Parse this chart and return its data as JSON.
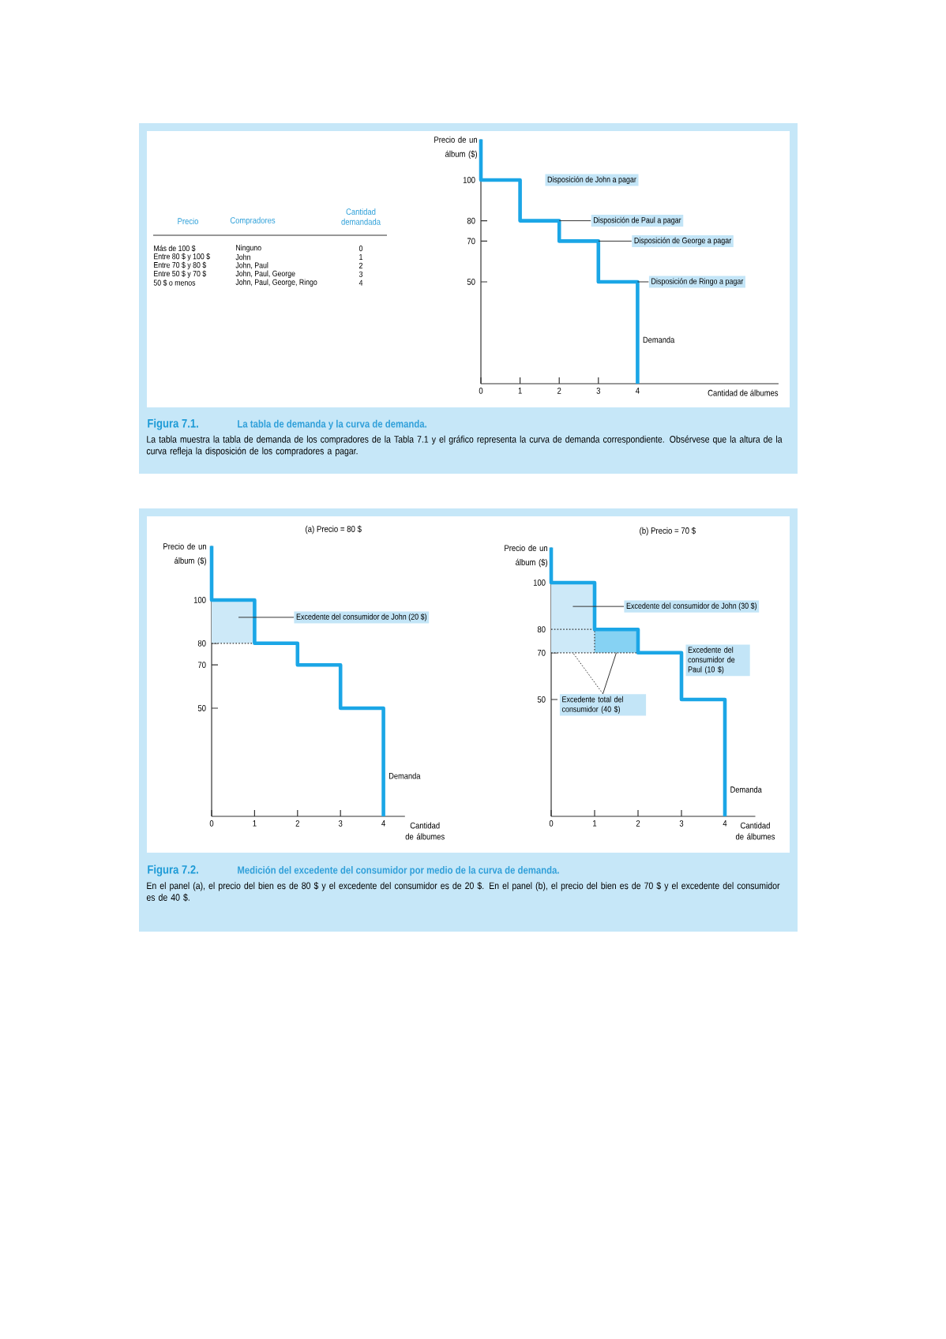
{
  "chart_data": [
    {
      "type": "other",
      "ylabel": "Precio",
      "y2label": "Compradores",
      "categories": [
        "Más de 100 $",
        "Entre 80 $ y 100 $",
        "Entre 70 $ y 80 $",
        "Entre 50 $ y 70 $",
        "50 $ o menos"
      ],
      "y2_categories": [
        "Ninguno",
        "John",
        "John, Paul",
        "John, Paul, George",
        "John, Paul, George, Ringo"
      ],
      "series": [
        {
          "name": "Cantidad demandada",
          "values": [
            0,
            1,
            2,
            3,
            4
          ]
        }
      ],
      "data_labels": true
    },
    {
      "type": "step",
      "ylabel": "Precio de un álbum ($)",
      "xlabel": "Cantidad de álbumes",
      "xlim": [
        0,
        7.6
      ],
      "ylim": [
        0,
        120
      ],
      "xticks": [
        0,
        1,
        2,
        3,
        4
      ],
      "yticks": [
        50,
        70,
        80,
        100
      ],
      "series": [
        {
          "name": "Demanda",
          "color": "#1ba6e6",
          "x": [
            0,
            0,
            1,
            2,
            3,
            4
          ],
          "values": [
            120,
            100,
            80,
            70,
            50,
            0
          ]
        }
      ],
      "annotations": [
        "Disposición de John a pagar",
        {
          "text": "Disposición de Paul a pagar",
          "x": 2,
          "y": 80
        },
        {
          "text": "Disposición de George a pagar",
          "x": 3,
          "y": 70
        },
        {
          "text": "Disposición de Ringo a pagar",
          "x": 4,
          "y": 50
        }
      ]
    },
    {
      "type": "other",
      "title": "Figura 7.1.",
      "subtitle": "La tabla de demanda y la curva de demanda.",
      "annotations": [
        "La tabla muestra la tabla de demanda de los compradores de la Tabla 7.1 y el gráfico representa la curva de demanda correspondiente. Obsérvese que la altura de la curva refleja la disposición de los compradores a pagar."
      ]
    },
    {
      "type": "step",
      "title": "(a) Precio = 80 $",
      "ylabel": "Precio de un álbum ($)",
      "xlabel": "Cantidad de álbumes",
      "xlim": [
        0,
        4.5
      ],
      "ylim": [
        0,
        125
      ],
      "xticks": [
        0,
        1,
        2,
        3,
        4
      ],
      "yticks": [
        50,
        70,
        80,
        100
      ],
      "series": [
        {
          "type": "bar",
          "color": "#cde9f8",
          "x": [
            0.5
          ],
          "values": [
            20
          ],
          "base": [
            80
          ]
        },
        {
          "type": "line",
          "color": "#333333",
          "line_style": "dotted",
          "x": [
            0,
            1
          ],
          "values": [
            80,
            80
          ]
        },
        {
          "name": "Demanda",
          "color": "#1ba6e6",
          "x": [
            0,
            0,
            1,
            2,
            3,
            4
          ],
          "values": [
            125,
            100,
            80,
            70,
            50,
            0
          ]
        }
      ],
      "annotations": [
        "Excedente del consumidor de John (20 $)"
      ]
    },
    {
      "type": "step",
      "title": "(b) Precio = 70 $",
      "ylabel": "Precio de un álbum ($)",
      "xlabel": "Cantidad de álbumes",
      "xlim": [
        0,
        4.7
      ],
      "ylim": [
        0,
        115
      ],
      "xticks": [
        0,
        1,
        2,
        3,
        4
      ],
      "yticks": [
        50,
        70,
        80,
        100
      ],
      "series": [
        {
          "type": "bar",
          "color": "#cde9f8",
          "x": [
            0.5
          ],
          "values": [
            30
          ],
          "base": [
            70
          ]
        },
        {
          "type": "bar",
          "color": "#86d2f3",
          "x": [
            1.5
          ],
          "values": [
            10
          ],
          "base": [
            70
          ]
        },
        {
          "type": "line",
          "color": "#333333",
          "line_style": "dotted",
          "x": [
            0,
            1,
            1
          ],
          "values": [
            80,
            80,
            70
          ]
        },
        {
          "type": "line",
          "color": "#333333",
          "line_style": "dotted",
          "x": [
            0,
            2
          ],
          "values": [
            70,
            70
          ]
        },
        {
          "name": "Demanda",
          "color": "#1ba6e6",
          "x": [
            0,
            0,
            1,
            2,
            3,
            4
          ],
          "values": [
            115,
            100,
            80,
            70,
            50,
            0
          ]
        }
      ],
      "annotations": [
        "Excedente del consumidor de John (30 $)",
        "Excedente del consumidor de Paul (10 $)",
        {
          "text": "Excedente total del consumidor (40 $)",
          "x": 0.5,
          "y": 70
        }
      ]
    },
    {
      "type": "other",
      "title": "Figura 7.2.",
      "subtitle": "Medición del excedente del consumidor por medio de la curva de demanda.",
      "annotations": [
        "En el panel (a), el precio del bien es de 80 $ y el excedente del consumidor es de 20 $. En el panel (b), el precio del bien es de 70 $ y el excedente del consumidor es de 40 $."
      ]
    }
  ]
}
